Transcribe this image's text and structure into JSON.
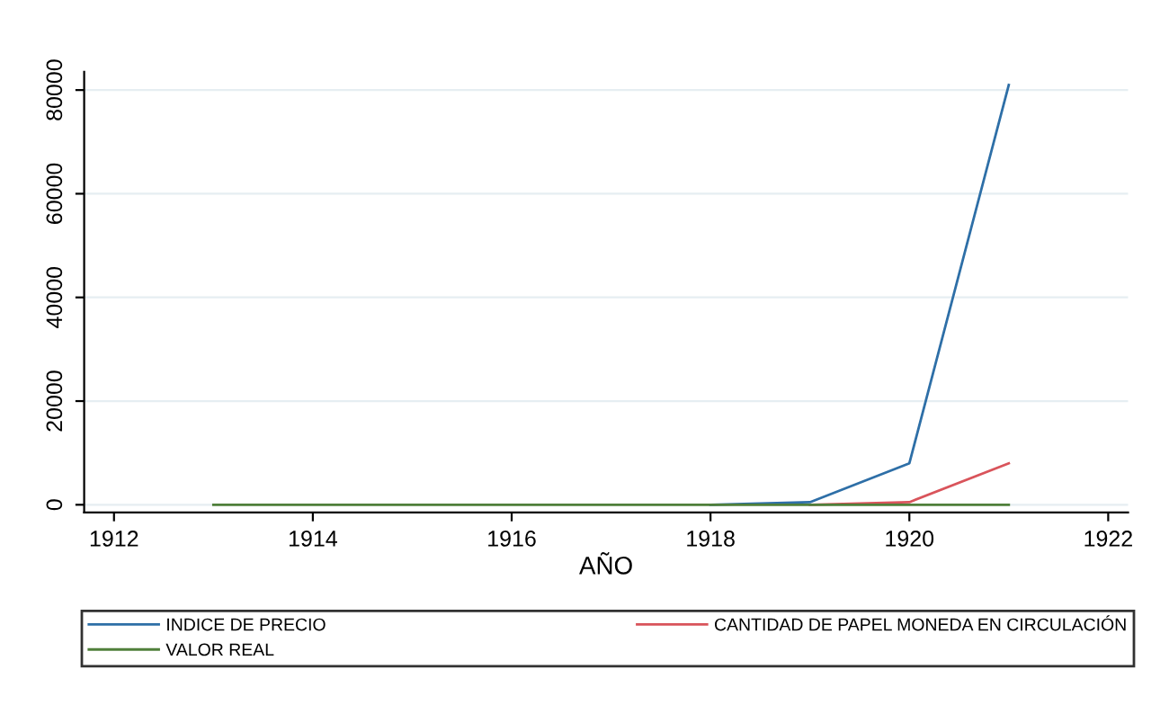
{
  "chart_data": {
    "type": "line",
    "xlabel": "AÑO",
    "x": [
      1913,
      1914,
      1915,
      1916,
      1917,
      1918,
      1919,
      1920,
      1921
    ],
    "series": [
      {
        "name": "INDICE DE PRECIO",
        "color": "#2e6fa7",
        "values": [
          null,
          null,
          null,
          null,
          null,
          0,
          500,
          8000,
          81000
        ]
      },
      {
        "name": "CANTIDAD DE PAPEL MONEDA EN CIRCULACIÓN",
        "color": "#d9545b",
        "values": [
          null,
          null,
          null,
          null,
          null,
          null,
          0,
          500,
          8000
        ]
      },
      {
        "name": "VALOR REAL",
        "color": "#4f7f3a",
        "values": [
          0,
          0,
          0,
          0,
          0,
          0,
          0,
          0,
          0
        ]
      }
    ],
    "xlim": [
      1911.7,
      1922.2
    ],
    "xticks": [
      1912,
      1914,
      1916,
      1918,
      1920,
      1922
    ],
    "ylim": [
      -1500,
      83500
    ],
    "yticks": [
      0,
      20000,
      40000,
      60000,
      80000
    ],
    "grid": "y",
    "legend": "bottom",
    "line_style": "solid",
    "marker": "none"
  }
}
